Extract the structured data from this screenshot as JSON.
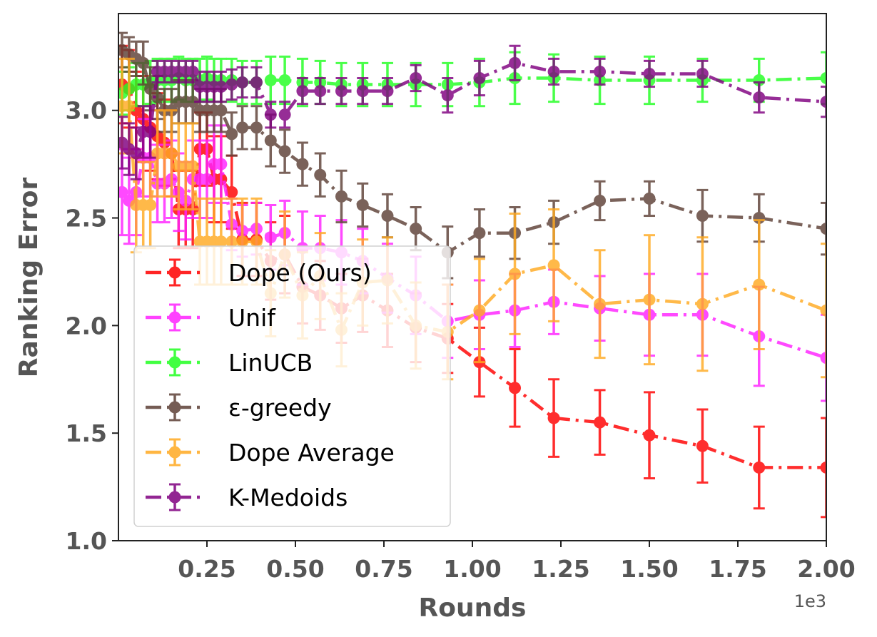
{
  "chart_data": {
    "type": "line",
    "xlabel": "Rounds",
    "ylabel": "Ranking Error",
    "x_offset_label": "1e3",
    "xlim": [
      0.0,
      2.0
    ],
    "ylim": [
      1.0,
      3.45
    ],
    "x_ticks": [
      0.25,
      0.5,
      0.75,
      1.0,
      1.25,
      1.5,
      1.75,
      2.0
    ],
    "x_tick_labels": [
      "0.25",
      "0.50",
      "0.75",
      "1.00",
      "1.25",
      "1.50",
      "1.75",
      "2.00"
    ],
    "y_ticks": [
      1.0,
      1.5,
      2.0,
      2.5,
      3.0
    ],
    "y_tick_labels": [
      "1.0",
      "1.5",
      "2.0",
      "2.5",
      "3.0"
    ],
    "grid": false,
    "legend_position": "lower-left",
    "series": [
      {
        "name": "Dope (Ours)",
        "color": "#ff0000",
        "x": [
          0.01,
          0.03,
          0.05,
          0.07,
          0.09,
          0.11,
          0.13,
          0.15,
          0.17,
          0.19,
          0.21,
          0.23,
          0.25,
          0.27,
          0.29,
          0.32,
          0.35,
          0.39,
          0.43,
          0.47,
          0.52,
          0.57,
          0.63,
          0.69,
          0.76,
          0.84,
          0.93,
          1.02,
          1.12,
          1.23,
          1.36,
          1.5,
          1.65,
          1.81,
          2.0
        ],
        "y": [
          3.12,
          3.1,
          3.0,
          2.96,
          2.92,
          2.88,
          2.85,
          2.8,
          2.54,
          2.54,
          2.54,
          2.82,
          2.82,
          2.68,
          2.68,
          2.62,
          2.4,
          2.4,
          2.3,
          2.33,
          2.18,
          2.14,
          2.08,
          2.14,
          2.07,
          1.99,
          1.94,
          1.83,
          1.71,
          1.57,
          1.55,
          1.49,
          1.44,
          1.34,
          1.34
        ],
        "err": [
          0.18,
          0.18,
          0.18,
          0.2,
          0.2,
          0.2,
          0.2,
          0.2,
          0.18,
          0.18,
          0.18,
          0.17,
          0.17,
          0.2,
          0.2,
          0.17,
          0.17,
          0.17,
          0.18,
          0.18,
          0.17,
          0.16,
          0.16,
          0.17,
          0.17,
          0.16,
          0.16,
          0.16,
          0.18,
          0.18,
          0.15,
          0.2,
          0.17,
          0.19,
          0.23
        ]
      },
      {
        "name": "Unif",
        "color": "#ff22ff",
        "x": [
          0.01,
          0.03,
          0.05,
          0.07,
          0.09,
          0.11,
          0.13,
          0.15,
          0.17,
          0.19,
          0.21,
          0.23,
          0.25,
          0.27,
          0.29,
          0.32,
          0.35,
          0.39,
          0.43,
          0.47,
          0.52,
          0.57,
          0.63,
          0.69,
          0.76,
          0.84,
          0.93,
          1.02,
          1.12,
          1.23,
          1.36,
          1.5,
          1.65,
          1.81,
          2.0
        ],
        "y": [
          2.62,
          2.58,
          2.62,
          2.78,
          2.78,
          2.66,
          2.66,
          2.68,
          2.62,
          2.58,
          2.68,
          2.68,
          2.68,
          2.75,
          2.75,
          2.47,
          2.44,
          2.45,
          2.41,
          2.43,
          2.36,
          2.36,
          2.34,
          2.3,
          2.22,
          2.14,
          2.02,
          2.05,
          2.07,
          2.11,
          2.08,
          2.05,
          2.05,
          1.95,
          1.85
        ],
        "err": [
          0.2,
          0.2,
          0.2,
          0.18,
          0.18,
          0.18,
          0.18,
          0.18,
          0.18,
          0.18,
          0.18,
          0.18,
          0.18,
          0.18,
          0.18,
          0.12,
          0.12,
          0.12,
          0.15,
          0.15,
          0.17,
          0.15,
          0.15,
          0.15,
          0.16,
          0.18,
          0.17,
          0.16,
          0.17,
          0.15,
          0.15,
          0.19,
          0.19,
          0.23,
          0.2
        ]
      },
      {
        "name": "LinUCB",
        "color": "#22ff22",
        "x": [
          0.01,
          0.03,
          0.05,
          0.07,
          0.09,
          0.11,
          0.13,
          0.15,
          0.17,
          0.19,
          0.21,
          0.23,
          0.25,
          0.27,
          0.29,
          0.32,
          0.35,
          0.39,
          0.43,
          0.47,
          0.52,
          0.57,
          0.63,
          0.69,
          0.76,
          0.84,
          0.93,
          1.02,
          1.12,
          1.23,
          1.36,
          1.5,
          1.65,
          1.81,
          2.0
        ],
        "y": [
          3.08,
          3.1,
          3.12,
          3.12,
          3.13,
          3.14,
          3.14,
          3.14,
          3.15,
          3.14,
          3.14,
          3.14,
          3.15,
          3.14,
          3.14,
          3.14,
          3.13,
          3.13,
          3.14,
          3.14,
          3.13,
          3.13,
          3.12,
          3.12,
          3.12,
          3.12,
          3.12,
          3.13,
          3.15,
          3.15,
          3.14,
          3.14,
          3.14,
          3.14,
          3.15
        ],
        "err": [
          0.1,
          0.1,
          0.1,
          0.1,
          0.1,
          0.1,
          0.1,
          0.1,
          0.1,
          0.1,
          0.1,
          0.1,
          0.1,
          0.1,
          0.1,
          0.1,
          0.1,
          0.1,
          0.11,
          0.11,
          0.11,
          0.1,
          0.1,
          0.1,
          0.1,
          0.1,
          0.1,
          0.11,
          0.12,
          0.11,
          0.11,
          0.11,
          0.1,
          0.1,
          0.12
        ]
      },
      {
        "name": "ε-greedy",
        "color": "#5d4037",
        "x": [
          0.01,
          0.03,
          0.05,
          0.07,
          0.09,
          0.11,
          0.13,
          0.15,
          0.17,
          0.19,
          0.21,
          0.23,
          0.25,
          0.27,
          0.29,
          0.32,
          0.35,
          0.39,
          0.43,
          0.47,
          0.52,
          0.57,
          0.63,
          0.69,
          0.76,
          0.84,
          0.93,
          1.02,
          1.12,
          1.23,
          1.36,
          1.5,
          1.65,
          1.81,
          2.0
        ],
        "y": [
          3.28,
          3.26,
          3.24,
          3.22,
          3.1,
          3.06,
          3.0,
          3.0,
          3.04,
          3.04,
          3.04,
          3.0,
          3.0,
          3.0,
          3.0,
          2.89,
          2.92,
          2.92,
          2.86,
          2.81,
          2.75,
          2.7,
          2.6,
          2.56,
          2.51,
          2.45,
          2.34,
          2.43,
          2.43,
          2.48,
          2.58,
          2.59,
          2.51,
          2.5,
          2.45
        ],
        "err": [
          0.08,
          0.08,
          0.08,
          0.1,
          0.1,
          0.1,
          0.1,
          0.1,
          0.1,
          0.1,
          0.1,
          0.1,
          0.1,
          0.1,
          0.1,
          0.1,
          0.1,
          0.1,
          0.12,
          0.1,
          0.1,
          0.1,
          0.12,
          0.1,
          0.1,
          0.1,
          0.12,
          0.11,
          0.12,
          0.1,
          0.09,
          0.08,
          0.12,
          0.11,
          0.12
        ]
      },
      {
        "name": "Dope Average",
        "color": "#ffaa22",
        "x": [
          0.01,
          0.03,
          0.05,
          0.07,
          0.09,
          0.11,
          0.13,
          0.15,
          0.17,
          0.19,
          0.21,
          0.23,
          0.25,
          0.27,
          0.29,
          0.32,
          0.35,
          0.39,
          0.43,
          0.47,
          0.52,
          0.57,
          0.63,
          0.69,
          0.76,
          0.84,
          0.93,
          1.02,
          1.12,
          1.23,
          1.36,
          1.5,
          1.65,
          1.81,
          2.0
        ],
        "y": [
          3.02,
          3.02,
          2.56,
          2.56,
          2.56,
          2.8,
          2.8,
          2.8,
          2.74,
          2.74,
          2.74,
          2.39,
          2.39,
          2.39,
          2.39,
          2.39,
          2.39,
          2.39,
          2.15,
          2.33,
          2.14,
          2.23,
          1.98,
          2.2,
          2.21,
          2.0,
          1.97,
          2.07,
          2.24,
          2.28,
          2.1,
          2.12,
          2.1,
          2.19,
          2.07
        ],
        "err": [
          0.22,
          0.22,
          0.22,
          0.2,
          0.2,
          0.2,
          0.2,
          0.2,
          0.2,
          0.2,
          0.2,
          0.2,
          0.2,
          0.2,
          0.2,
          0.2,
          0.2,
          0.2,
          0.2,
          0.2,
          0.2,
          0.2,
          0.17,
          0.2,
          0.2,
          0.2,
          0.22,
          0.24,
          0.28,
          0.26,
          0.25,
          0.3,
          0.31,
          0.3,
          0.31
        ]
      },
      {
        "name": "K-Medoids",
        "color": "#800080",
        "x": [
          0.01,
          0.03,
          0.05,
          0.07,
          0.09,
          0.11,
          0.13,
          0.15,
          0.17,
          0.19,
          0.21,
          0.23,
          0.25,
          0.27,
          0.29,
          0.32,
          0.35,
          0.39,
          0.43,
          0.47,
          0.52,
          0.57,
          0.63,
          0.69,
          0.76,
          0.84,
          0.93,
          1.02,
          1.12,
          1.23,
          1.36,
          1.5,
          1.65,
          1.81,
          2.0
        ],
        "y": [
          2.85,
          2.82,
          2.8,
          2.9,
          2.9,
          3.18,
          3.18,
          3.18,
          3.18,
          3.18,
          3.18,
          3.11,
          3.11,
          3.11,
          3.11,
          3.12,
          3.13,
          3.13,
          2.98,
          2.98,
          3.09,
          3.09,
          3.09,
          3.09,
          3.09,
          3.15,
          3.07,
          3.15,
          3.22,
          3.18,
          3.18,
          3.17,
          3.17,
          3.06,
          3.04
        ],
        "err": [
          0.12,
          0.12,
          0.12,
          0.12,
          0.12,
          0.05,
          0.05,
          0.05,
          0.05,
          0.05,
          0.05,
          0.07,
          0.07,
          0.07,
          0.07,
          0.07,
          0.07,
          0.07,
          0.06,
          0.06,
          0.06,
          0.06,
          0.06,
          0.06,
          0.06,
          0.06,
          0.08,
          0.08,
          0.08,
          0.06,
          0.06,
          0.06,
          0.06,
          0.07,
          0.07
        ]
      }
    ]
  }
}
